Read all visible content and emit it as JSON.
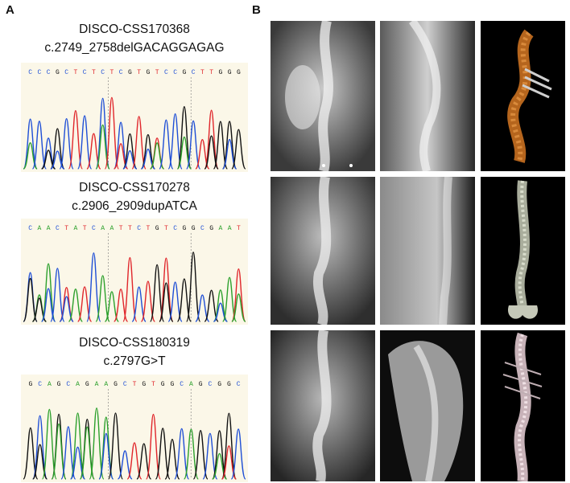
{
  "panels": {
    "a_label": "A",
    "b_label": "B"
  },
  "traces": [
    {
      "id": "DISCO-CSS170368",
      "mutation": "c.2749_2758delGACAGGAGAG",
      "sequence": "CCCGCTCTCTCGTGTCCGCTTGGG"
    },
    {
      "id": "DISCO-CSS170278",
      "mutation": "c.2906_2909dupATCA",
      "sequence": "CAACTATCAATTCTGTCGGCGAAT"
    },
    {
      "id": "DISCO-CSS180319",
      "mutation": "c.2797G>T",
      "sequence": "GCAGCAGAAGCTGTGGCAGCGGC"
    }
  ],
  "base_colors": {
    "A": "#2ca02c",
    "C": "#1f4fd6",
    "G": "#111111",
    "T": "#e0262b"
  },
  "imaging_rows": [
    [
      "frontal-radiograph",
      "lateral-radiograph",
      "3d-ct-reconstruction"
    ],
    [
      "frontal-radiograph",
      "lateral-radiograph",
      "3d-ct-reconstruction"
    ],
    [
      "frontal-radiograph",
      "lateral-radiograph",
      "3d-ct-reconstruction"
    ]
  ]
}
